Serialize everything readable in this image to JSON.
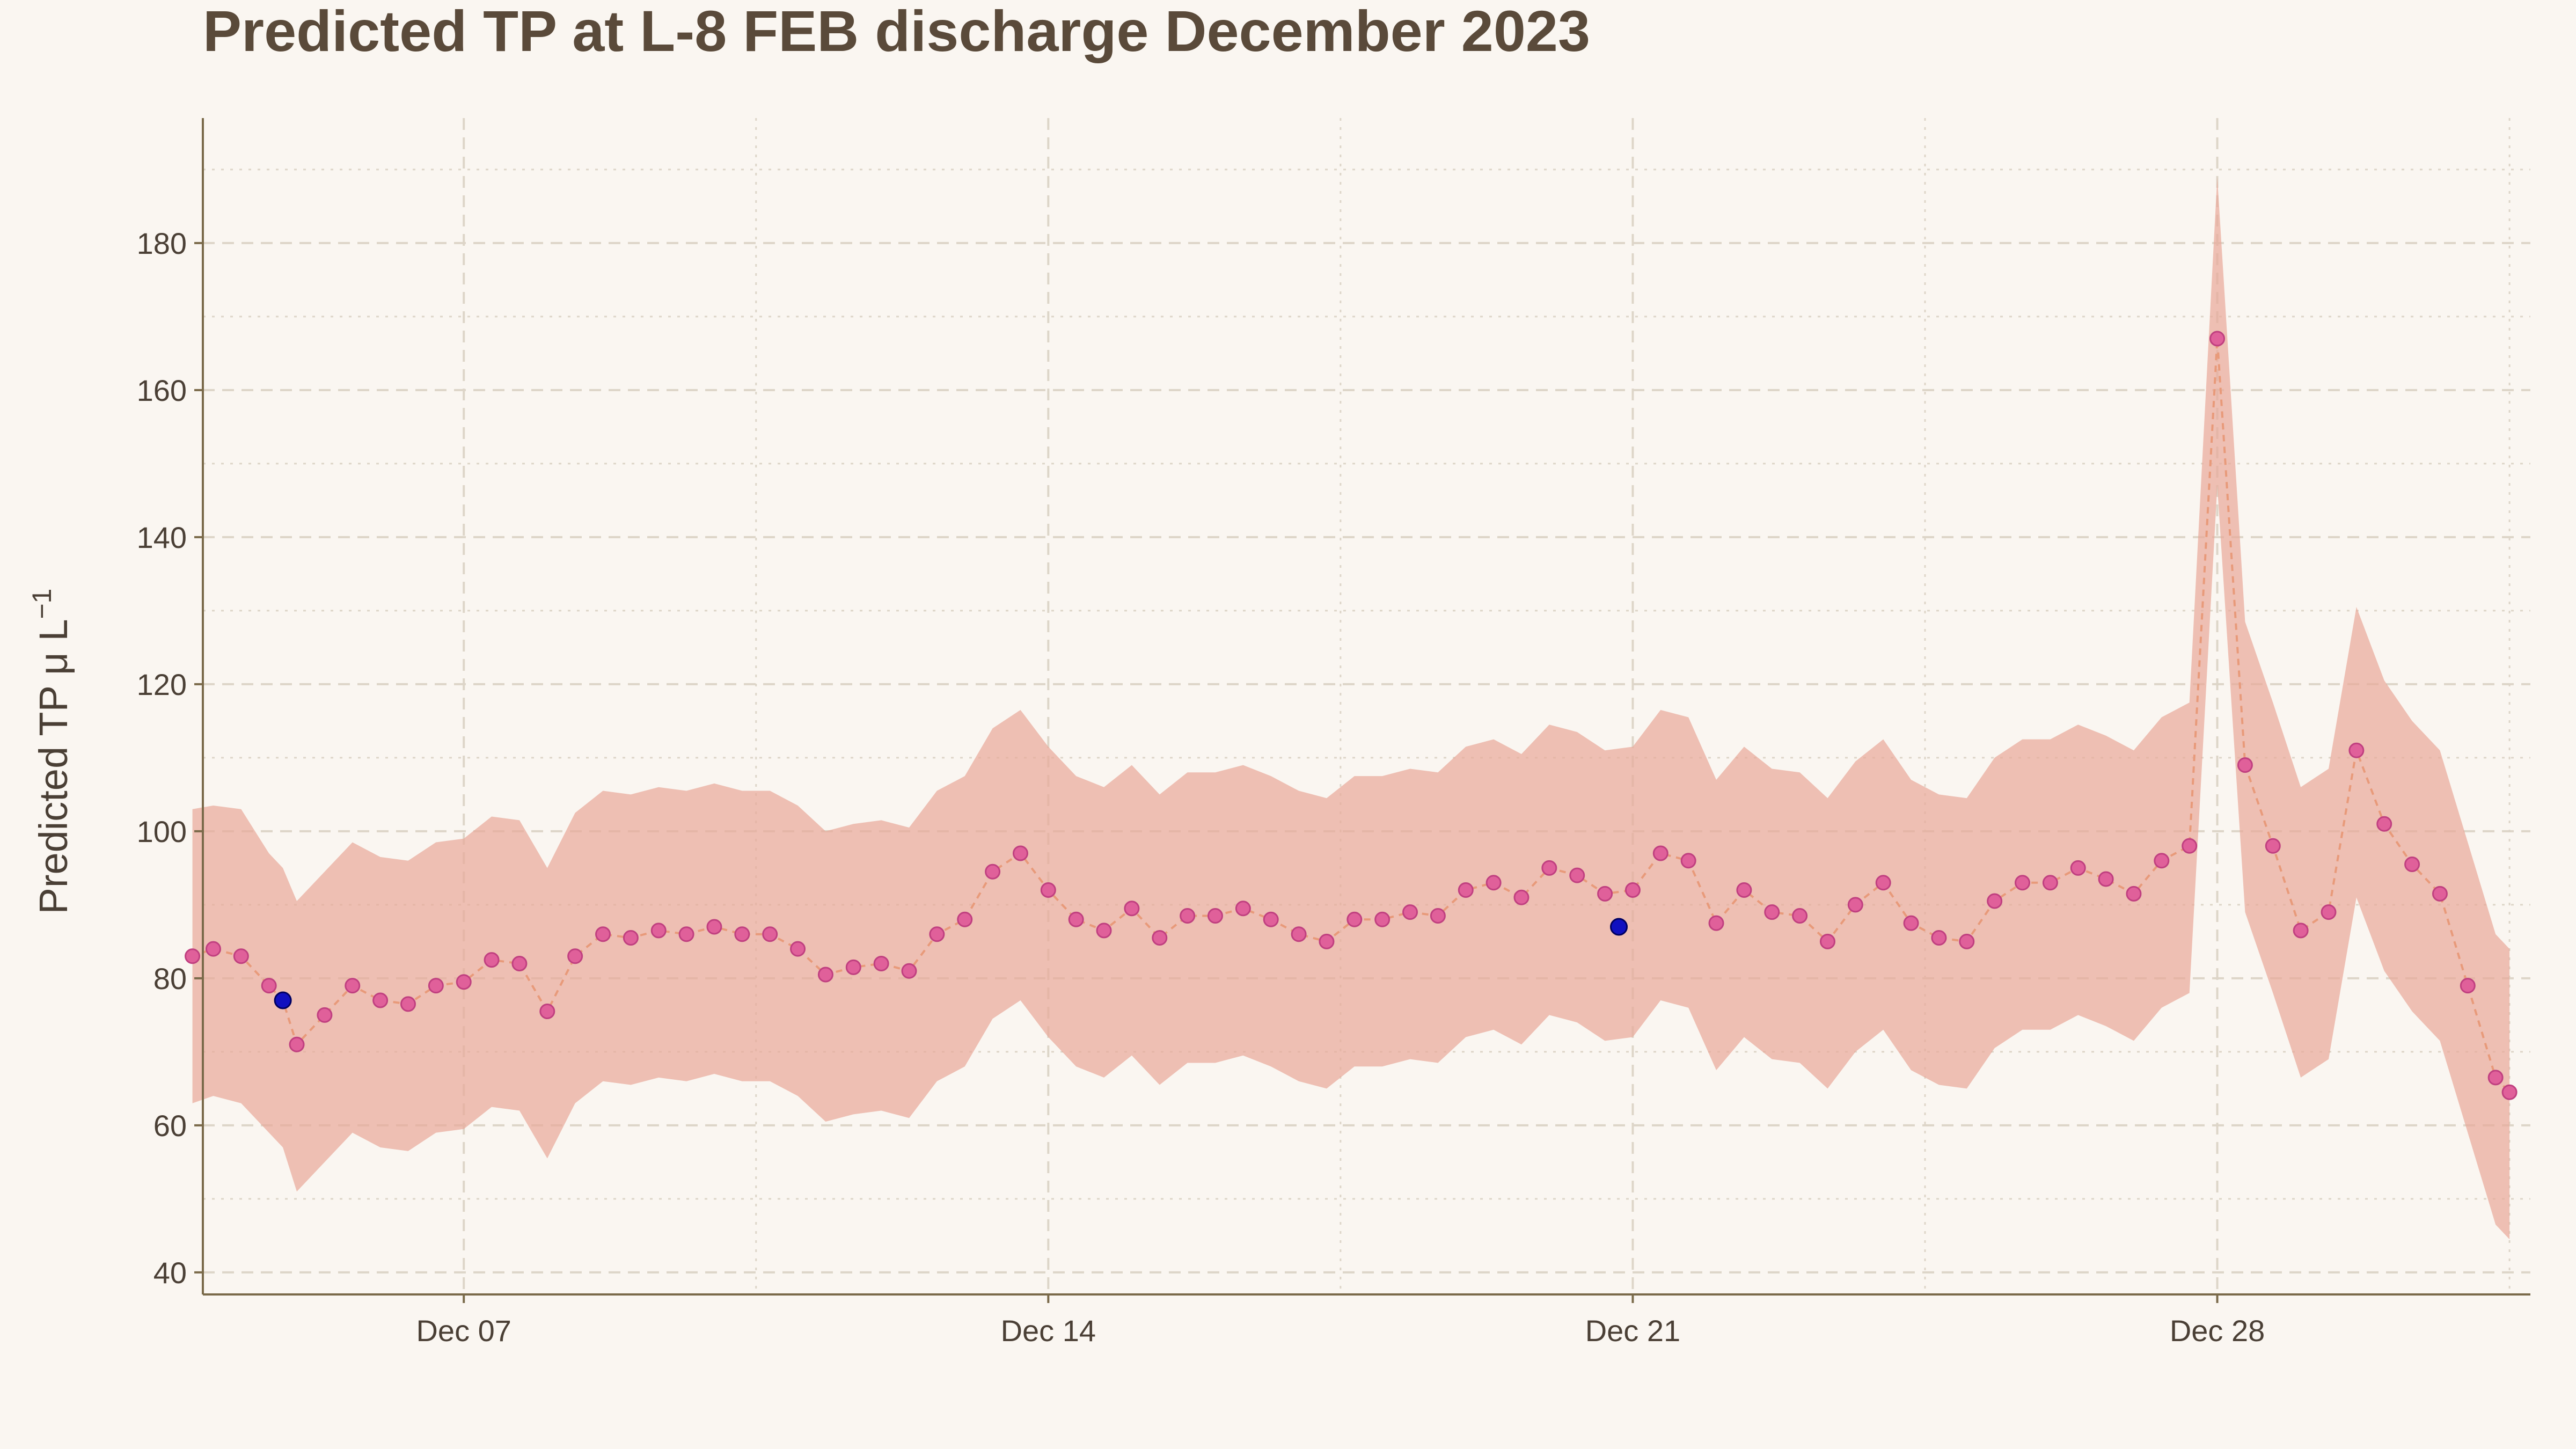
{
  "chart_data": {
    "type": "line",
    "title": "Predicted TP at L-8 FEB discharge December 2023",
    "ylabel": "Predicted TP μ L",
    "ylabel_exponent": "−1",
    "xlabel": "",
    "ylim": [
      37,
      197
    ],
    "xlim": [
      "2023-12-03T21:00",
      "2023-12-31T18:00"
    ],
    "yticks": [
      40,
      60,
      80,
      100,
      120,
      140,
      160,
      180
    ],
    "xticks": [
      {
        "date": "2023-12-07",
        "label": "Dec 07"
      },
      {
        "date": "2023-12-14",
        "label": "Dec 14"
      },
      {
        "date": "2023-12-21",
        "label": "Dec 21"
      },
      {
        "date": "2023-12-28",
        "label": "Dec 28"
      }
    ],
    "grid": true,
    "colors": {
      "band": "#e8a898",
      "line": "#e89a7a",
      "marker": "#e0609a",
      "marker_edge": "#c04080",
      "highlight": "#1010c0",
      "axis": "#7a6a4a",
      "grid": "#ddd5c8"
    },
    "series": [
      {
        "segments": [
          [
            [
              "2023-12-03T18:00",
              83,
              63,
              103
            ],
            [
              "2023-12-04T00:00",
              84,
              64,
              103.5
            ],
            [
              "2023-12-04T08:00",
              83,
              63,
              103
            ],
            [
              "2023-12-04T16:00",
              79,
              59,
              97
            ],
            [
              "2023-12-04T20:00",
              77,
              57,
              95
            ],
            [
              "2023-12-05T00:00",
              71,
              51,
              90.5
            ],
            [
              "2023-12-05T08:00",
              75,
              55,
              94.5
            ],
            [
              "2023-12-05T16:00",
              79,
              59,
              98.5
            ],
            [
              "2023-12-06T00:00",
              77,
              57,
              96.5
            ],
            [
              "2023-12-06T08:00",
              76.5,
              56.5,
              96
            ],
            [
              "2023-12-06T16:00",
              79,
              59,
              98.5
            ],
            [
              "2023-12-07T00:00",
              79.5,
              59.5,
              99
            ],
            [
              "2023-12-07T08:00",
              82.5,
              62.5,
              102
            ],
            [
              "2023-12-07T16:00",
              82,
              62,
              101.5
            ],
            [
              "2023-12-08T00:00",
              75.5,
              55.5,
              95
            ],
            [
              "2023-12-08T08:00",
              83,
              63,
              102.5
            ],
            [
              "2023-12-08T16:00",
              86,
              66,
              105.5
            ],
            [
              "2023-12-09T00:00",
              85.5,
              65.5,
              105
            ],
            [
              "2023-12-09T08:00",
              86.5,
              66.5,
              106
            ],
            [
              "2023-12-09T16:00",
              86,
              66,
              105.5
            ],
            [
              "2023-12-10T00:00",
              87,
              67,
              106.5
            ],
            [
              "2023-12-10T08:00",
              86,
              66,
              105.5
            ],
            [
              "2023-12-10T16:00",
              86,
              66,
              105.5
            ],
            [
              "2023-12-11T00:00",
              84,
              64,
              103.5
            ],
            [
              "2023-12-11T08:00",
              80.5,
              60.5,
              100
            ],
            [
              "2023-12-11T16:00",
              81.5,
              61.5,
              101
            ],
            [
              "2023-12-12T00:00",
              82,
              62,
              101.5
            ],
            [
              "2023-12-12T08:00",
              81,
              61,
              100.5
            ],
            [
              "2023-12-12T16:00",
              86,
              66,
              105.5
            ],
            [
              "2023-12-13T00:00",
              88,
              68,
              107.5
            ],
            [
              "2023-12-13T08:00",
              94.5,
              74.5,
              114
            ],
            [
              "2023-12-13T16:00",
              97,
              77,
              116.5
            ],
            [
              "2023-12-14T00:00",
              92,
              72,
              111.5
            ],
            [
              "2023-12-14T08:00",
              88,
              68,
              107.5
            ],
            [
              "2023-12-14T16:00",
              86.5,
              66.5,
              106
            ],
            [
              "2023-12-15T00:00",
              89.5,
              69.5,
              109
            ],
            [
              "2023-12-15T08:00",
              85.5,
              65.5,
              105
            ],
            [
              "2023-12-15T16:00",
              88.5,
              68.5,
              108
            ],
            [
              "2023-12-16T00:00",
              88.5,
              68.5,
              108
            ],
            [
              "2023-12-16T08:00",
              89.5,
              69.5,
              109
            ],
            [
              "2023-12-16T16:00",
              88,
              68,
              107.5
            ],
            [
              "2023-12-17T00:00",
              86,
              66,
              105.5
            ],
            [
              "2023-12-17T08:00",
              85,
              65,
              104.5
            ],
            [
              "2023-12-17T16:00",
              88,
              68,
              107.5
            ],
            [
              "2023-12-18T00:00",
              88,
              68,
              107.5
            ],
            [
              "2023-12-18T08:00",
              89,
              69,
              108.5
            ],
            [
              "2023-12-18T16:00",
              88.5,
              68.5,
              108
            ],
            [
              "2023-12-19T00:00",
              92,
              72,
              111.5
            ],
            [
              "2023-12-19T08:00",
              93,
              73,
              112.5
            ],
            [
              "2023-12-19T16:00",
              91,
              71,
              110.5
            ],
            [
              "2023-12-20T00:00",
              95,
              75,
              114.5
            ],
            [
              "2023-12-20T08:00",
              94,
              74,
              113.5
            ],
            [
              "2023-12-20T16:00",
              91.5,
              71.5,
              111
            ],
            [
              "2023-12-21T00:00",
              92,
              72,
              111.5
            ],
            [
              "2023-12-21T08:00",
              97,
              77,
              116.5
            ],
            [
              "2023-12-21T16:00",
              96,
              76,
              115.5
            ],
            [
              "2023-12-22T00:00",
              87.5,
              67.5,
              107
            ],
            [
              "2023-12-22T08:00",
              92,
              72,
              111.5
            ],
            [
              "2023-12-22T16:00",
              89,
              69,
              108.5
            ],
            [
              "2023-12-23T00:00",
              88.5,
              68.5,
              108
            ],
            [
              "2023-12-23T08:00",
              85,
              65,
              104.5
            ],
            [
              "2023-12-23T16:00",
              90,
              70,
              109.5
            ],
            [
              "2023-12-24T00:00",
              93,
              73,
              112.5
            ],
            [
              "2023-12-24T08:00",
              87.5,
              67.5,
              107
            ],
            [
              "2023-12-24T16:00",
              85.5,
              65.5,
              105
            ],
            [
              "2023-12-25T00:00",
              85,
              65,
              104.5
            ],
            [
              "2023-12-25T08:00",
              90.5,
              70.5,
              110
            ],
            [
              "2023-12-25T16:00",
              93,
              73,
              112.5
            ],
            [
              "2023-12-26T00:00",
              93,
              73,
              112.5
            ],
            [
              "2023-12-26T08:00",
              95,
              75,
              114.5
            ],
            [
              "2023-12-26T16:00",
              93.5,
              73.5,
              113
            ],
            [
              "2023-12-27T00:00",
              91.5,
              71.5,
              111
            ],
            [
              "2023-12-27T08:00",
              96,
              76,
              115.5
            ],
            [
              "2023-12-27T16:00",
              98,
              78,
              117.5
            ],
            [
              "2023-12-28T00:00",
              167,
              147,
              189
            ],
            [
              "2023-12-28T08:00",
              109,
              89,
              128.5
            ],
            [
              "2023-12-28T16:00",
              98,
              78,
              117.5
            ],
            [
              "2023-12-29T00:00",
              86.5,
              66.5,
              106
            ],
            [
              "2023-12-29T08:00",
              89,
              69,
              108.5
            ],
            [
              "2023-12-29T16:00",
              111,
              91,
              130.5
            ],
            [
              "2023-12-30T00:00",
              101,
              81,
              120.5
            ],
            [
              "2023-12-30T08:00",
              95.5,
              75.5,
              115
            ],
            [
              "2023-12-30T16:00",
              91.5,
              71.5,
              111
            ],
            [
              "2023-12-31T00:00",
              79,
              59,
              98.5
            ],
            [
              "2023-12-31T08:00",
              66.5,
              46.5,
              86
            ],
            [
              "2023-12-31T12:00",
              64.5,
              44.5,
              84
            ]
          ]
        ]
      }
    ],
    "highlight_points": [
      [
        "2023-12-04T20:00",
        77
      ],
      [
        "2023-12-20T20:00",
        87
      ]
    ]
  }
}
